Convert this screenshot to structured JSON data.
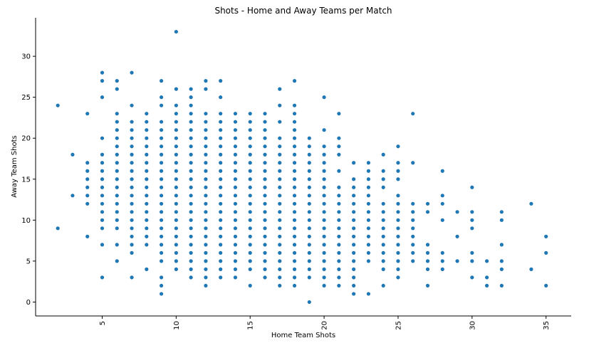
{
  "chart_data": {
    "type": "scatter",
    "title": "Shots - Home and Away Teams per Match",
    "xlabel": "Home Team Shots",
    "ylabel": "Away Team Shots",
    "xlim": [
      0.5,
      36.7
    ],
    "ylim": [
      -1.7,
      34.7
    ],
    "xticks": [
      5,
      10,
      15,
      20,
      25,
      30,
      35
    ],
    "yticks": [
      0,
      5,
      10,
      15,
      20,
      25,
      30
    ],
    "grid": false,
    "marker_color": "#1f77b4",
    "columns": [
      {
        "x": 2,
        "y": [
          9,
          24
        ]
      },
      {
        "x": 3,
        "y": [
          13,
          18
        ]
      },
      {
        "x": 4,
        "y": [
          8,
          12,
          13,
          14,
          15,
          16,
          17,
          23
        ]
      },
      {
        "x": 5,
        "y": [
          3,
          7,
          9,
          10,
          11,
          12,
          13,
          14,
          15,
          16,
          17,
          18,
          20,
          25,
          27,
          28
        ]
      },
      {
        "x": 6,
        "y": [
          5,
          7,
          9,
          10,
          11,
          12,
          13,
          14,
          15,
          16,
          17,
          18,
          19,
          20,
          21,
          22,
          23,
          26,
          27
        ]
      },
      {
        "x": 7,
        "y": [
          3,
          6,
          7,
          8,
          9,
          10,
          11,
          12,
          13,
          14,
          15,
          16,
          17,
          18,
          19,
          20,
          21,
          22,
          24,
          28
        ]
      },
      {
        "x": 8,
        "y": [
          4,
          7,
          8,
          9,
          10,
          11,
          12,
          13,
          14,
          15,
          16,
          17,
          18,
          19,
          20,
          21,
          22,
          23
        ]
      },
      {
        "x": 9,
        "y": [
          1,
          2,
          3,
          5,
          6,
          7,
          8,
          9,
          10,
          11,
          12,
          13,
          14,
          15,
          16,
          17,
          18,
          19,
          20,
          21,
          22,
          24,
          25,
          27
        ]
      },
      {
        "x": 10,
        "y": [
          4,
          5,
          6,
          7,
          8,
          9,
          10,
          11,
          12,
          13,
          14,
          15,
          16,
          17,
          18,
          19,
          20,
          21,
          22,
          23,
          24,
          26,
          33
        ]
      },
      {
        "x": 11,
        "y": [
          3,
          4,
          5,
          6,
          7,
          8,
          9,
          10,
          11,
          12,
          13,
          14,
          15,
          16,
          17,
          18,
          19,
          20,
          21,
          22,
          23,
          24,
          25,
          26
        ]
      },
      {
        "x": 12,
        "y": [
          2,
          3,
          4,
          5,
          6,
          7,
          8,
          9,
          10,
          11,
          12,
          13,
          14,
          15,
          16,
          17,
          18,
          19,
          20,
          21,
          22,
          23,
          26,
          27
        ]
      },
      {
        "x": 13,
        "y": [
          3,
          4,
          5,
          6,
          7,
          8,
          9,
          10,
          11,
          12,
          13,
          14,
          15,
          16,
          17,
          18,
          19,
          20,
          21,
          22,
          23,
          25,
          27
        ]
      },
      {
        "x": 14,
        "y": [
          3,
          4,
          5,
          6,
          7,
          8,
          9,
          10,
          11,
          12,
          13,
          14,
          15,
          16,
          17,
          18,
          19,
          20,
          21,
          22,
          23
        ]
      },
      {
        "x": 15,
        "y": [
          2,
          4,
          5,
          6,
          7,
          8,
          9,
          10,
          11,
          12,
          13,
          14,
          15,
          16,
          17,
          18,
          19,
          20,
          21,
          22,
          23
        ]
      },
      {
        "x": 16,
        "y": [
          3,
          4,
          5,
          6,
          7,
          8,
          9,
          10,
          11,
          12,
          13,
          14,
          15,
          16,
          17,
          18,
          19,
          20,
          21,
          22,
          23
        ]
      },
      {
        "x": 17,
        "y": [
          2,
          3,
          4,
          5,
          6,
          7,
          8,
          9,
          10,
          11,
          12,
          13,
          14,
          15,
          16,
          17,
          18,
          19,
          20,
          22,
          24,
          26
        ]
      },
      {
        "x": 18,
        "y": [
          2,
          3,
          4,
          5,
          6,
          7,
          8,
          9,
          10,
          11,
          12,
          13,
          14,
          15,
          16,
          17,
          18,
          19,
          20,
          21,
          22,
          23,
          24,
          27
        ]
      },
      {
        "x": 19,
        "y": [
          0,
          3,
          4,
          5,
          6,
          7,
          8,
          9,
          10,
          11,
          12,
          13,
          14,
          15,
          16,
          17,
          18,
          19,
          20
        ]
      },
      {
        "x": 20,
        "y": [
          2,
          3,
          4,
          5,
          6,
          7,
          8,
          9,
          10,
          11,
          12,
          13,
          14,
          15,
          16,
          17,
          18,
          19,
          21,
          25
        ]
      },
      {
        "x": 21,
        "y": [
          2,
          3,
          4,
          5,
          6,
          7,
          8,
          9,
          10,
          11,
          12,
          13,
          14,
          16,
          18,
          19,
          20,
          23
        ]
      },
      {
        "x": 22,
        "y": [
          1,
          2,
          3,
          4,
          5,
          6,
          7,
          8,
          9,
          10,
          11,
          12,
          13,
          14,
          15,
          17
        ]
      },
      {
        "x": 23,
        "y": [
          1,
          5,
          6,
          7,
          8,
          9,
          10,
          11,
          12,
          13,
          14,
          15,
          16,
          17
        ]
      },
      {
        "x": 24,
        "y": [
          2,
          4,
          5,
          6,
          7,
          8,
          9,
          10,
          11,
          12,
          14,
          15,
          16,
          18
        ]
      },
      {
        "x": 25,
        "y": [
          3,
          4,
          5,
          6,
          7,
          8,
          9,
          10,
          11,
          12,
          13,
          15,
          16,
          17,
          19
        ]
      },
      {
        "x": 26,
        "y": [
          5,
          6,
          7,
          8,
          9,
          10,
          11,
          12,
          17,
          23
        ]
      },
      {
        "x": 27,
        "y": [
          2,
          4,
          5,
          6,
          7,
          11,
          12
        ]
      },
      {
        "x": 28,
        "y": [
          4,
          5,
          6,
          10,
          12,
          13,
          16
        ]
      },
      {
        "x": 29,
        "y": [
          5,
          8,
          11
        ]
      },
      {
        "x": 30,
        "y": [
          3,
          5,
          6,
          9,
          10,
          11,
          14
        ]
      },
      {
        "x": 31,
        "y": [
          2,
          3,
          5
        ]
      },
      {
        "x": 32,
        "y": [
          2,
          4,
          5,
          7,
          10,
          11
        ]
      },
      {
        "x": 34,
        "y": [
          4,
          12
        ]
      },
      {
        "x": 35,
        "y": [
          2,
          6,
          8
        ]
      }
    ]
  }
}
